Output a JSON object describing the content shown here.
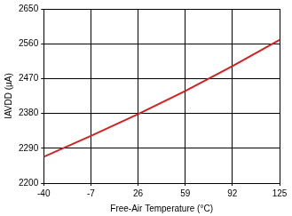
{
  "chart_data": {
    "type": "line",
    "x_label": "Free-Air Temperature (°C)",
    "y_label": "IAVDD (µA)",
    "x": [
      -40,
      -7,
      26,
      59,
      92,
      125
    ],
    "values": [
      2268,
      2322,
      2378,
      2438,
      2502,
      2570
    ],
    "color": "#d42020",
    "xlim": [
      -40,
      125
    ],
    "xticks": [
      -40,
      -7,
      26,
      59,
      92,
      125
    ],
    "ylim": [
      2200,
      2650
    ],
    "yticks": [
      2200,
      2290,
      2380,
      2470,
      2560,
      2650
    ],
    "grid": true
  }
}
